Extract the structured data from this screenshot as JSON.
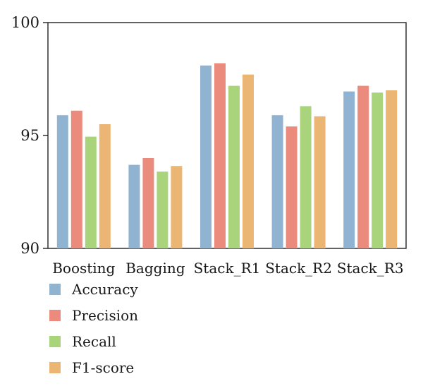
{
  "chart_data": {
    "type": "bar",
    "categories": [
      "Boosting",
      "Bagging",
      "Stack_R1",
      "Stack_R2",
      "Stack_R3"
    ],
    "series": [
      {
        "name": "Accuracy",
        "color": "#8fb3d0",
        "values": [
          95.9,
          93.7,
          98.1,
          95.9,
          96.95
        ]
      },
      {
        "name": "Precision",
        "color": "#ea8b7e",
        "values": [
          96.1,
          94.0,
          98.2,
          95.4,
          97.2
        ]
      },
      {
        "name": "Recall",
        "color": "#a9d47b",
        "values": [
          94.95,
          93.4,
          97.2,
          96.3,
          96.9
        ]
      },
      {
        "name": "F1-score",
        "color": "#ebb574",
        "values": [
          95.5,
          93.65,
          97.7,
          95.85,
          97.0
        ]
      }
    ],
    "ylim": [
      90,
      100
    ],
    "yticks": [
      "90",
      "95",
      "100"
    ],
    "title": "",
    "xlabel": "",
    "ylabel": "",
    "grid": false,
    "legend_position": "below-left"
  }
}
